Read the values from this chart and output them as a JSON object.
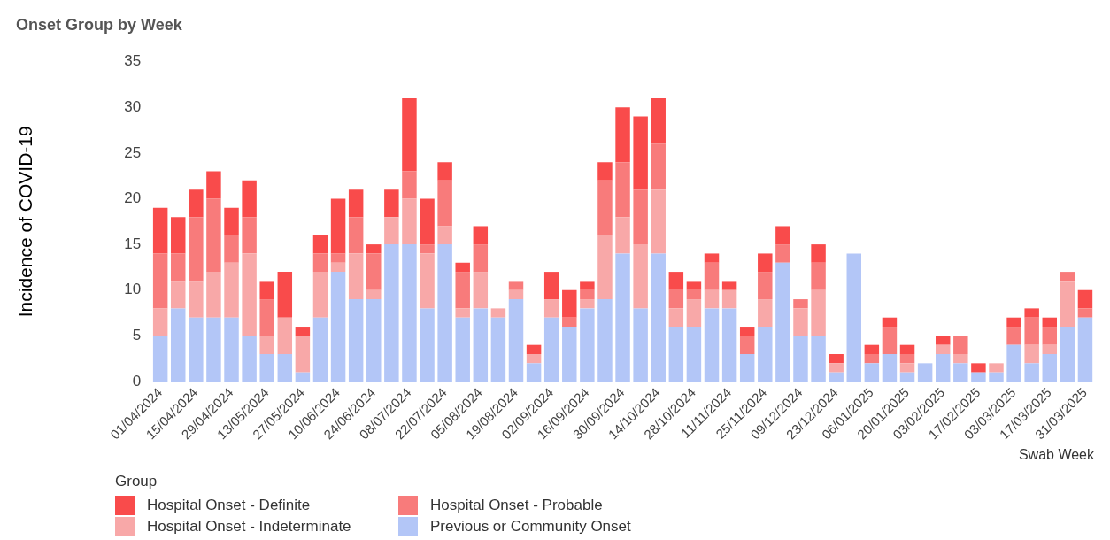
{
  "chart_data": {
    "type": "bar",
    "title": "Onset Group by Week",
    "xlabel": "Swab Week",
    "ylabel": "Incidence of COVID-19",
    "legend_title": "Group",
    "legend": "bottom left",
    "stacked": true,
    "grid": false,
    "ylim": [
      0,
      35
    ],
    "yticks": [
      0,
      5,
      10,
      15,
      20,
      25,
      30,
      35
    ],
    "categories": [
      "01/04/2024",
      null,
      "15/04/2024",
      null,
      "29/04/2024",
      null,
      "13/05/2024",
      null,
      "27/05/2024",
      null,
      "10/06/2024",
      null,
      "24/06/2024",
      null,
      "08/07/2024",
      null,
      "22/07/2024",
      null,
      "05/08/2024",
      null,
      "19/08/2024",
      null,
      "02/09/2024",
      null,
      "16/09/2024",
      null,
      "30/09/2024",
      null,
      "14/10/2024",
      null,
      "28/10/2024",
      null,
      "11/11/2024",
      null,
      "25/11/2024",
      null,
      "09/12/2024",
      null,
      "23/12/2024",
      null,
      "06/01/2025",
      null,
      "20/01/2025",
      null,
      "03/02/2025",
      null,
      "17/02/2025",
      null,
      "03/03/2025",
      null,
      "17/03/2025",
      null,
      "31/03/2025"
    ],
    "series": [
      {
        "name": "Previous or Community Onset",
        "color": "#b3c6f7",
        "values": [
          5,
          8,
          7,
          7,
          7,
          5,
          3,
          3,
          1,
          7,
          12,
          9,
          9,
          15,
          15,
          8,
          15,
          7,
          8,
          7,
          9,
          2,
          7,
          6,
          8,
          9,
          14,
          8,
          14,
          6,
          6,
          8,
          8,
          3,
          6,
          13,
          5,
          5,
          1,
          14,
          2,
          3,
          1,
          2,
          3,
          2,
          1,
          1,
          4,
          2,
          3,
          6,
          7
        ]
      },
      {
        "name": "Hospital Onset - Indeterminate",
        "color": "#f8a8a8",
        "values": [
          3,
          3,
          4,
          5,
          6,
          9,
          2,
          4,
          4,
          5,
          1,
          5,
          1,
          3,
          5,
          6,
          2,
          1,
          4,
          1,
          1,
          1,
          2,
          0,
          1,
          7,
          4,
          7,
          7,
          2,
          3,
          2,
          2,
          0,
          3,
          0,
          3,
          5,
          1,
          0,
          0,
          0,
          1,
          0,
          1,
          1,
          0,
          1,
          0,
          2,
          1,
          5,
          0
        ]
      },
      {
        "name": "Hospital Onset - Probable",
        "color": "#f87b7b",
        "values": [
          6,
          3,
          7,
          8,
          3,
          4,
          4,
          0,
          0,
          2,
          1,
          4,
          4,
          0,
          3,
          1,
          5,
          4,
          3,
          0,
          1,
          0,
          0,
          1,
          1,
          6,
          6,
          6,
          5,
          2,
          1,
          3,
          0,
          2,
          3,
          2,
          1,
          3,
          0,
          0,
          1,
          3,
          1,
          0,
          0,
          2,
          0,
          0,
          2,
          3,
          2,
          1,
          1
        ]
      },
      {
        "name": "Hospital Onset - Definite",
        "color": "#f94b4b",
        "values": [
          5,
          4,
          3,
          3,
          3,
          4,
          2,
          5,
          1,
          2,
          6,
          3,
          1,
          3,
          8,
          5,
          2,
          1,
          2,
          0,
          0,
          1,
          3,
          3,
          1,
          2,
          6,
          8,
          5,
          2,
          1,
          1,
          1,
          1,
          2,
          2,
          0,
          2,
          1,
          0,
          1,
          1,
          1,
          0,
          1,
          0,
          1,
          0,
          1,
          1,
          1,
          0,
          2
        ]
      }
    ]
  }
}
